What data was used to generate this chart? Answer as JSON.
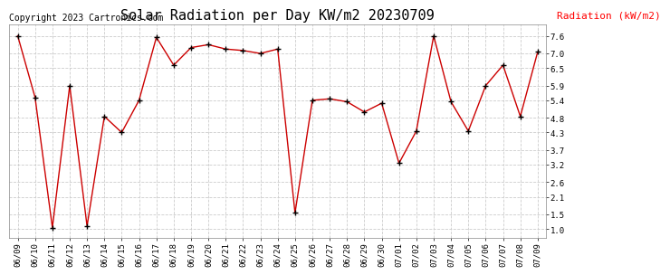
{
  "title": "Solar Radiation per Day KW/m2 20230709",
  "legend_label": "Radiation (kW/m2)",
  "copyright_text": "Copyright 2023 Cartronics.com",
  "dates": [
    "06/09",
    "06/10",
    "06/11",
    "06/12",
    "06/13",
    "06/14",
    "06/15",
    "06/16",
    "06/17",
    "06/18",
    "06/19",
    "06/20",
    "06/21",
    "06/22",
    "06/23",
    "06/24",
    "06/25",
    "06/26",
    "06/27",
    "06/28",
    "06/29",
    "06/30",
    "07/01",
    "07/02",
    "07/03",
    "07/04",
    "07/05",
    "07/06",
    "07/07",
    "07/08",
    "07/09"
  ],
  "values": [
    7.6,
    5.5,
    1.05,
    5.9,
    1.1,
    4.85,
    4.3,
    5.4,
    7.55,
    6.6,
    7.2,
    7.3,
    7.15,
    7.1,
    7.0,
    7.15,
    1.55,
    5.4,
    5.45,
    5.35,
    5.0,
    5.3,
    3.25,
    4.35,
    7.6,
    5.35,
    4.35,
    5.9,
    6.6,
    4.85,
    7.05
  ],
  "line_color": "#cc0000",
  "marker_color": "#000000",
  "bg_color": "#ffffff",
  "grid_color": "#cccccc",
  "yticks": [
    1.0,
    1.5,
    2.1,
    2.6,
    3.2,
    3.7,
    4.3,
    4.8,
    5.4,
    5.9,
    6.5,
    7.0,
    7.6
  ],
  "ylim": [
    0.7,
    8.0
  ],
  "title_fontsize": 11,
  "legend_fontsize": 8,
  "copyright_fontsize": 7,
  "axis_label_fontsize": 6.5
}
